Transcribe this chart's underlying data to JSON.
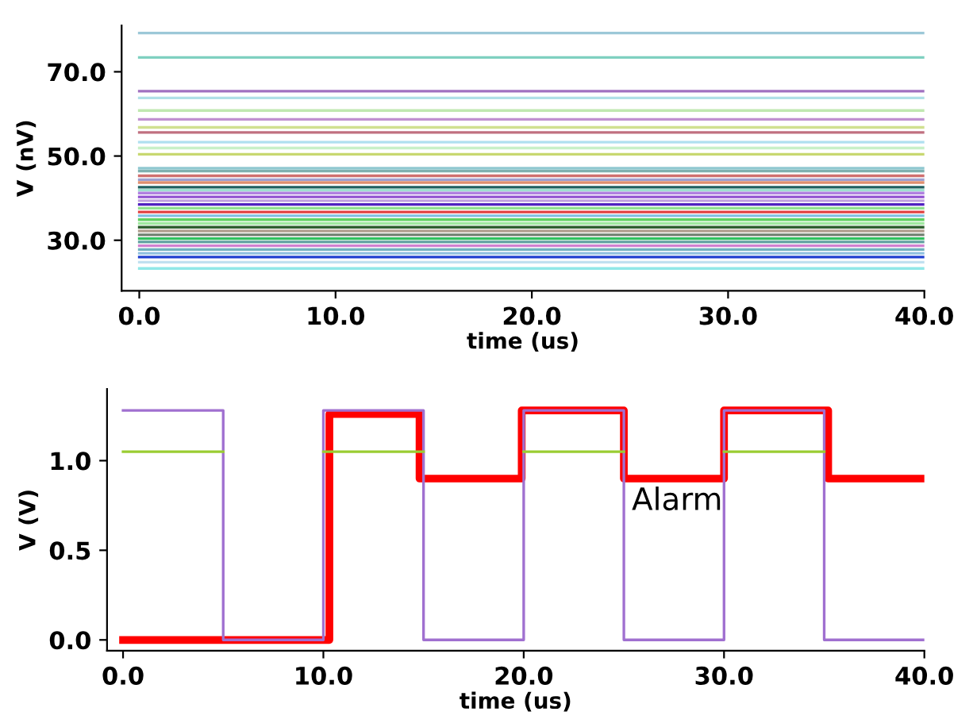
{
  "chart_data": [
    {
      "type": "line",
      "xlabel": "time (us)",
      "ylabel": "V (nV)",
      "xlim": [
        -0.9,
        40
      ],
      "ylim": [
        18,
        81
      ],
      "xticks": [
        {
          "value": 0,
          "label": "0.0"
        },
        {
          "value": 10,
          "label": "10.0"
        },
        {
          "value": 20,
          "label": "20.0"
        },
        {
          "value": 30,
          "label": "30.0"
        },
        {
          "value": 40,
          "label": "40.0"
        }
      ],
      "yticks": [
        {
          "value": 30,
          "label": "30.0"
        },
        {
          "value": 50,
          "label": "50.0"
        },
        {
          "value": 70,
          "label": "70.0"
        }
      ],
      "x": [
        0,
        40
      ],
      "series": [
        {
          "color": "#9cc8d8",
          "values": [
            79.2,
            79.2
          ]
        },
        {
          "color": "#7fd0c0",
          "values": [
            73.4,
            73.4
          ]
        },
        {
          "color": "#a070c0",
          "values": [
            65.4,
            65.4
          ]
        },
        {
          "color": "#b0e0e8",
          "values": [
            63.8,
            63.8
          ]
        },
        {
          "color": "#c0e8b0",
          "values": [
            60.8,
            60.8
          ]
        },
        {
          "color": "#c090d0",
          "values": [
            58.7,
            58.7
          ]
        },
        {
          "color": "#d0e090",
          "values": [
            56.8,
            56.8
          ]
        },
        {
          "color": "#c07080",
          "values": [
            55.6,
            55.6
          ]
        },
        {
          "color": "#b0e0f0",
          "values": [
            53.3,
            53.3
          ]
        },
        {
          "color": "#c8f0c8",
          "values": [
            51.9,
            51.9
          ]
        },
        {
          "color": "#c8d870",
          "values": [
            50.4,
            50.4
          ]
        },
        {
          "color": "#90c8d0",
          "values": [
            47.1,
            47.1
          ]
        },
        {
          "color": "#80b0b0",
          "values": [
            46.4,
            46.4
          ]
        },
        {
          "color": "#d07070",
          "values": [
            45.3,
            45.3
          ]
        },
        {
          "color": "#a0a0d0",
          "values": [
            44.4,
            44.4
          ]
        },
        {
          "color": "#e09070",
          "values": [
            43.7,
            43.7
          ]
        },
        {
          "color": "#206060",
          "values": [
            42.6,
            42.6
          ]
        },
        {
          "color": "#a0e0d0",
          "values": [
            41.9,
            41.9
          ]
        },
        {
          "color": "#b080e0",
          "values": [
            41.2,
            41.2
          ]
        },
        {
          "color": "#9050d0",
          "values": [
            40.3,
            40.3
          ]
        },
        {
          "color": "#c0a0e0",
          "values": [
            39.4,
            39.4
          ]
        },
        {
          "color": "#5020c0",
          "values": [
            38.5,
            38.5
          ]
        },
        {
          "color": "#90e090",
          "values": [
            37.6,
            37.6
          ]
        },
        {
          "color": "#e04040",
          "values": [
            36.7,
            36.7
          ]
        },
        {
          "color": "#80c0e0",
          "values": [
            35.8,
            35.8
          ]
        },
        {
          "color": "#60d060",
          "values": [
            34.9,
            34.9
          ]
        },
        {
          "color": "#a0e8a0",
          "values": [
            34.0,
            34.0
          ]
        },
        {
          "color": "#306030",
          "values": [
            33.1,
            33.1
          ]
        },
        {
          "color": "#b0a090",
          "values": [
            32.2,
            32.2
          ]
        },
        {
          "color": "#708070",
          "values": [
            31.3,
            31.3
          ]
        },
        {
          "color": "#30c060",
          "values": [
            30.4,
            30.4
          ]
        },
        {
          "color": "#60a0a0",
          "values": [
            29.6,
            29.6
          ]
        },
        {
          "color": "#d080d0",
          "values": [
            28.7,
            28.7
          ]
        },
        {
          "color": "#70b0c0",
          "values": [
            27.8,
            27.8
          ]
        },
        {
          "color": "#90c0e0",
          "values": [
            26.9,
            26.9
          ]
        },
        {
          "color": "#2040d0",
          "values": [
            26.0,
            26.0
          ]
        },
        {
          "color": "#c0e0f0",
          "values": [
            24.8,
            24.8
          ]
        },
        {
          "color": "#90e8e8",
          "values": [
            23.3,
            23.3
          ]
        }
      ]
    },
    {
      "type": "step",
      "xlabel": "time (us)",
      "ylabel": "V (V)",
      "xlim": [
        -0.8,
        40
      ],
      "ylim": [
        -0.06,
        1.4
      ],
      "xticks": [
        {
          "value": 0,
          "label": "0.0"
        },
        {
          "value": 10,
          "label": "10.0"
        },
        {
          "value": 20,
          "label": "20.0"
        },
        {
          "value": 30,
          "label": "30.0"
        },
        {
          "value": 40,
          "label": "40.0"
        }
      ],
      "yticks": [
        {
          "value": 0,
          "label": "0.0"
        },
        {
          "value": 0.5,
          "label": "0.5"
        },
        {
          "value": 1,
          "label": "1.0"
        }
      ],
      "annotations": [
        "Alarm"
      ],
      "series": [
        {
          "color": "#9acd32",
          "x": [
            0,
            5,
            10,
            15,
            20,
            25,
            30,
            35
          ],
          "values": [
            1.05,
            null,
            1.05,
            null,
            1.05,
            null,
            1.05,
            1.05
          ]
        },
        {
          "color": "#a070d0",
          "x": [
            0,
            5,
            10,
            15,
            20,
            25,
            30,
            35,
            40
          ],
          "values": [
            1.28,
            0,
            1.28,
            0,
            1.28,
            0,
            1.28,
            0,
            0
          ]
        },
        {
          "color": "#ff0000",
          "x": [
            0,
            10.3,
            14.8,
            19.9,
            25,
            30,
            35.2,
            40
          ],
          "values": [
            0,
            1.26,
            0.9,
            1.28,
            0.9,
            1.28,
            0.9,
            0.9
          ]
        }
      ]
    }
  ]
}
